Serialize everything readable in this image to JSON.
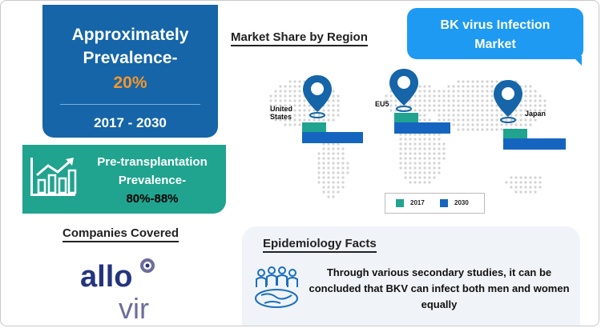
{
  "prevalence_card": {
    "line1": "Approximately",
    "line2": "Prevalence-",
    "percent": "20%",
    "years": "2017 - 2030"
  },
  "pre_transplant_card": {
    "line1": "Pre-transplantation",
    "line2": "Prevalence-",
    "line3": "80%-88%",
    "icon": "bar-chart-growth-icon"
  },
  "companies": {
    "title": "Companies Covered",
    "logo_line1": "allo",
    "logo_line2": "vir"
  },
  "market_share": {
    "title": "Market Share by Region",
    "regions": [
      {
        "label_line1": "United",
        "label_line2": "States"
      },
      {
        "label_line1": "EU5",
        "label_line2": ""
      },
      {
        "label_line1": "Japan",
        "label_line2": ""
      }
    ],
    "legend": [
      {
        "label": "2017",
        "color": "#20a38f"
      },
      {
        "label": "2030",
        "color": "#1565c0"
      }
    ]
  },
  "title_bubble": {
    "line1": "BK virus Infection",
    "line2": "Market"
  },
  "epidemiology": {
    "title": "Epidemiology Facts",
    "line1": "Through various secondary studies, it can be",
    "line2": "concluded that BKV can infect both men and women",
    "line3": "equally",
    "icon": "people-globe-icon"
  },
  "colors": {
    "dark_blue": "#1565a8",
    "teal": "#20a38f",
    "orange": "#f7962a",
    "bubble_blue": "#1e9af2",
    "bar_blue": "#1565c0"
  }
}
